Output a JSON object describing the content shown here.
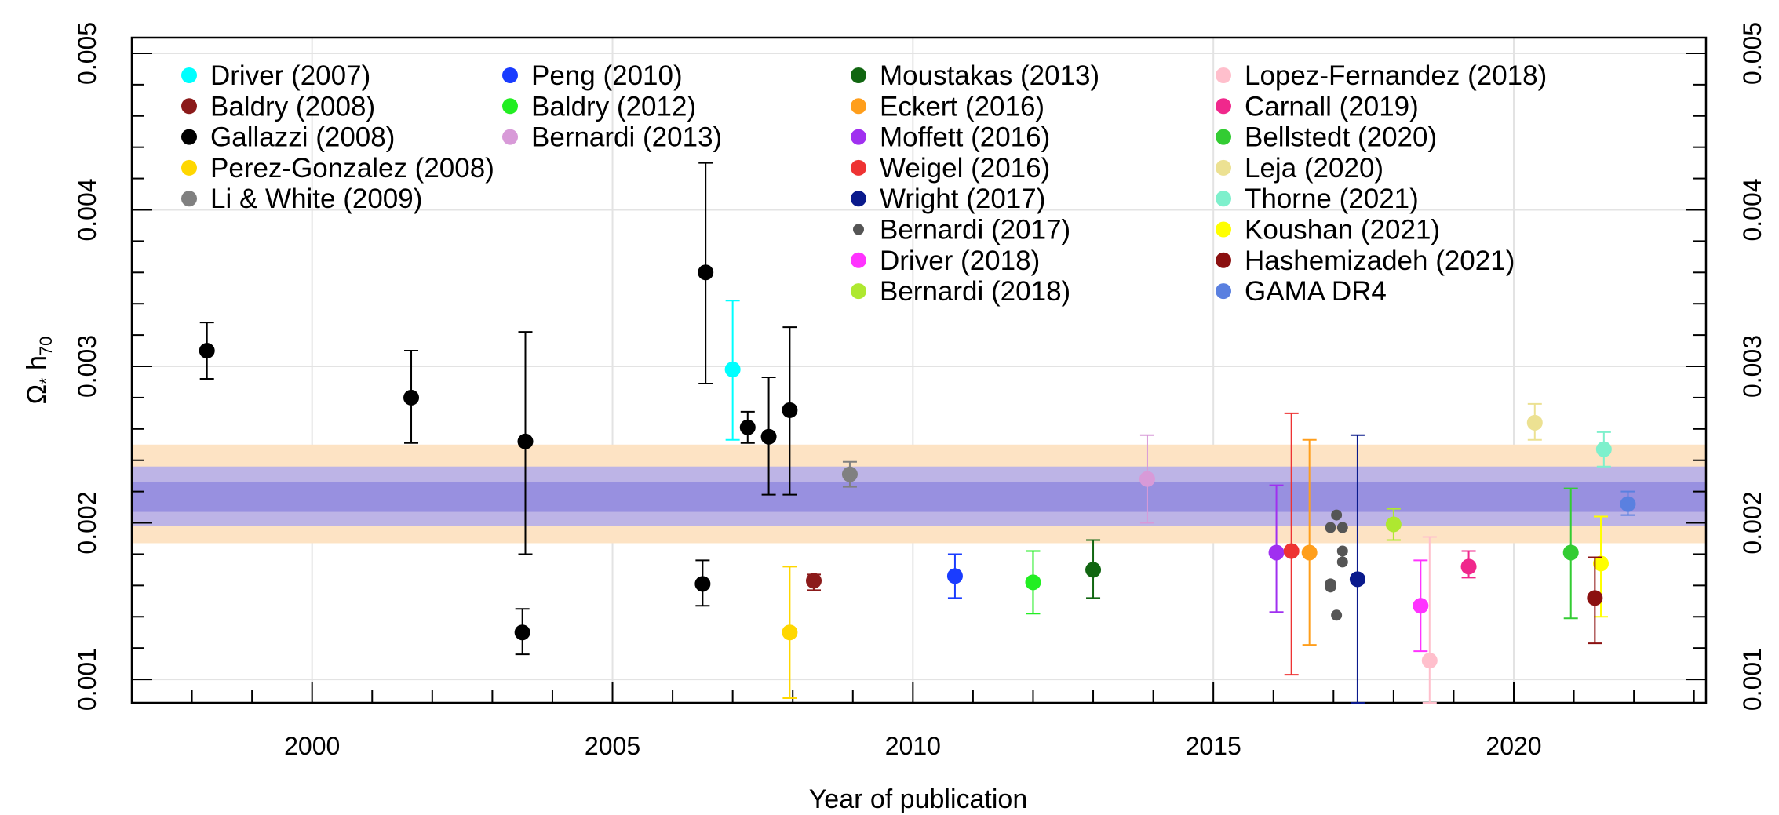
{
  "chart_data": {
    "type": "scatter",
    "title": "",
    "xlabel": "Year of publication",
    "ylabel_main": "Ω",
    "ylabel_sub1": "*",
    "ylabel_mid": " h",
    "ylabel_sub2": "70",
    "xlim": [
      1997,
      2023.2
    ],
    "ylim": [
      0.00085,
      0.0051
    ],
    "xticks": [
      2000,
      2005,
      2010,
      2015,
      2020
    ],
    "xtick_labels": [
      "2000",
      "2005",
      "2010",
      "2015",
      "2020"
    ],
    "yticks": [
      0.001,
      0.002,
      0.003,
      0.004,
      0.005
    ],
    "ytick_labels": [
      "0.001",
      "0.002",
      "0.003",
      "0.004",
      "0.005"
    ],
    "grid": true,
    "bands": [
      {
        "name": "outer-band",
        "y1": 0.00187,
        "y2": 0.0025,
        "color": "#fde3c4"
      },
      {
        "name": "middle-band",
        "y1": 0.00198,
        "y2": 0.00236,
        "color": "#bdb4e6"
      },
      {
        "name": "inner-band",
        "y1": 0.00207,
        "y2": 0.00226,
        "color": "#9890e0"
      }
    ],
    "series": [
      {
        "name": "Driver (2007)",
        "color": "#00ffff",
        "points": [
          {
            "x": 2007.0,
            "y": 0.00298,
            "lo": 0.00253,
            "hi": 0.00342
          }
        ]
      },
      {
        "name": "Baldry (2008)",
        "color": "#8b1a1a",
        "points": [
          {
            "x": 2008.35,
            "y": 0.00163,
            "lo": 0.00157,
            "hi": 0.00167
          }
        ]
      },
      {
        "name": "Gallazzi (2008)",
        "color": "#000000",
        "points": [
          {
            "x": 1998.25,
            "y": 0.0031,
            "lo": 0.00292,
            "hi": 0.00328
          },
          {
            "x": 2001.65,
            "y": 0.0028,
            "lo": 0.00251,
            "hi": 0.0031
          },
          {
            "x": 2003.5,
            "y": 0.0013,
            "lo": 0.00116,
            "hi": 0.00145
          },
          {
            "x": 2003.55,
            "y": 0.00252,
            "lo": 0.0018,
            "hi": 0.00322
          },
          {
            "x": 2006.5,
            "y": 0.00161,
            "lo": 0.00147,
            "hi": 0.00176
          },
          {
            "x": 2006.55,
            "y": 0.0036,
            "lo": 0.00289,
            "hi": 0.0043
          },
          {
            "x": 2007.25,
            "y": 0.00261,
            "lo": 0.00251,
            "hi": 0.00271
          },
          {
            "x": 2007.6,
            "y": 0.00255,
            "lo": 0.00218,
            "hi": 0.00293
          },
          {
            "x": 2007.95,
            "y": 0.00272,
            "lo": 0.00218,
            "hi": 0.00325
          }
        ]
      },
      {
        "name": "Perez-Gonzalez (2008)",
        "color": "#ffd700",
        "points": [
          {
            "x": 2007.95,
            "y": 0.0013,
            "lo": 0.00088,
            "hi": 0.00172
          }
        ]
      },
      {
        "name": "Li & White (2009)",
        "color": "#808080",
        "points": [
          {
            "x": 2008.95,
            "y": 0.00231,
            "lo": 0.00223,
            "hi": 0.00239
          }
        ]
      },
      {
        "name": "Peng (2010)",
        "color": "#1a3cff",
        "points": [
          {
            "x": 2010.7,
            "y": 0.00166,
            "lo": 0.00152,
            "hi": 0.0018
          }
        ]
      },
      {
        "name": "Baldry (2012)",
        "color": "#22ee22",
        "points": [
          {
            "x": 2012.0,
            "y": 0.00162,
            "lo": 0.00142,
            "hi": 0.00182
          }
        ]
      },
      {
        "name": "Bernardi (2013)",
        "color": "#d89ad8",
        "points": [
          {
            "x": 2013.9,
            "y": 0.00228,
            "lo": 0.002,
            "hi": 0.00256
          }
        ]
      },
      {
        "name": "Moustakas (2013)",
        "color": "#116611",
        "points": [
          {
            "x": 2013.0,
            "y": 0.0017,
            "lo": 0.00152,
            "hi": 0.00189
          }
        ]
      },
      {
        "name": "Eckert (2016)",
        "color": "#ff9e1b",
        "points": [
          {
            "x": 2016.6,
            "y": 0.00181,
            "lo": 0.00122,
            "hi": 0.00253
          }
        ]
      },
      {
        "name": "Moffett (2016)",
        "color": "#a030f0",
        "points": [
          {
            "x": 2016.05,
            "y": 0.00181,
            "lo": 0.00143,
            "hi": 0.00224
          }
        ]
      },
      {
        "name": "Weigel (2016)",
        "color": "#ee3333",
        "points": [
          {
            "x": 2016.3,
            "y": 0.00182,
            "lo": 0.00103,
            "hi": 0.0027
          }
        ]
      },
      {
        "name": "Wright (2017)",
        "color": "#0a1a8c",
        "points": [
          {
            "x": 2017.4,
            "y": 0.00164,
            "lo": 0.00085,
            "hi": 0.00256
          }
        ]
      },
      {
        "name": "Bernardi (2017)",
        "color": "#555555",
        "points": [
          {
            "x": 2016.95,
            "y": 0.00197,
            "lo": 0.00197,
            "hi": 0.00197
          },
          {
            "x": 2017.05,
            "y": 0.00205,
            "lo": 0.00205,
            "hi": 0.00205
          },
          {
            "x": 2017.15,
            "y": 0.00197,
            "lo": 0.00197,
            "hi": 0.00197
          },
          {
            "x": 2017.15,
            "y": 0.00182,
            "lo": 0.00182,
            "hi": 0.00182
          },
          {
            "x": 2017.15,
            "y": 0.00175,
            "lo": 0.00175,
            "hi": 0.00175
          },
          {
            "x": 2016.95,
            "y": 0.00161,
            "lo": 0.00161,
            "hi": 0.00161
          },
          {
            "x": 2016.95,
            "y": 0.00159,
            "lo": 0.00159,
            "hi": 0.00159
          },
          {
            "x": 2017.05,
            "y": 0.00141,
            "lo": 0.00141,
            "hi": 0.00141
          }
        ]
      },
      {
        "name": "Driver (2018)",
        "color": "#ff33ff",
        "points": [
          {
            "x": 2018.45,
            "y": 0.00147,
            "lo": 0.00118,
            "hi": 0.00176
          }
        ]
      },
      {
        "name": "Bernardi (2018)",
        "color": "#aee830",
        "points": [
          {
            "x": 2018.0,
            "y": 0.00199,
            "lo": 0.00189,
            "hi": 0.00209
          }
        ]
      },
      {
        "name": "Lopez-Fernandez (2018)",
        "color": "#ffbfcc",
        "points": [
          {
            "x": 2018.6,
            "y": 0.00112,
            "lo": 0.00085,
            "hi": 0.00191
          }
        ]
      },
      {
        "name": "Carnall (2019)",
        "color": "#f0288c",
        "points": [
          {
            "x": 2019.25,
            "y": 0.00172,
            "lo": 0.00165,
            "hi": 0.00182
          }
        ]
      },
      {
        "name": "Bellstedt (2020)",
        "color": "#33cc33",
        "points": [
          {
            "x": 2020.95,
            "y": 0.00181,
            "lo": 0.00139,
            "hi": 0.00222
          }
        ]
      },
      {
        "name": "Leja (2020)",
        "color": "#ece192",
        "points": [
          {
            "x": 2020.35,
            "y": 0.00264,
            "lo": 0.00253,
            "hi": 0.00276
          }
        ]
      },
      {
        "name": "Thorne (2021)",
        "color": "#7ef0cc",
        "points": [
          {
            "x": 2021.5,
            "y": 0.00247,
            "lo": 0.00236,
            "hi": 0.00258
          }
        ]
      },
      {
        "name": "Koushan (2021)",
        "color": "#ffff00",
        "points": [
          {
            "x": 2021.45,
            "y": 0.00174,
            "lo": 0.0014,
            "hi": 0.00204
          }
        ]
      },
      {
        "name": "Hashemizadeh (2021)",
        "color": "#8b1010",
        "points": [
          {
            "x": 2021.35,
            "y": 0.00152,
            "lo": 0.00123,
            "hi": 0.00178
          }
        ]
      },
      {
        "name": "GAMA DR4",
        "color": "#5a80e0",
        "points": [
          {
            "x": 2021.9,
            "y": 0.00212,
            "lo": 0.00205,
            "hi": 0.0022
          }
        ]
      }
    ],
    "legend": [
      [
        {
          "label": "Driver (2007)",
          "color": "#00ffff",
          "small": false
        },
        {
          "label": "Baldry (2008)",
          "color": "#8b1a1a",
          "small": false
        },
        {
          "label": "Gallazzi (2008)",
          "color": "#000000",
          "small": false
        },
        {
          "label": "Perez-Gonzalez (2008)",
          "color": "#ffd700",
          "small": false
        },
        {
          "label": "Li & White (2009)",
          "color": "#808080",
          "small": false
        }
      ],
      [
        {
          "label": "Peng (2010)",
          "color": "#1a3cff",
          "small": false
        },
        {
          "label": "Baldry (2012)",
          "color": "#22ee22",
          "small": false
        },
        {
          "label": "Bernardi (2013)",
          "color": "#d89ad8",
          "small": false
        }
      ],
      [
        {
          "label": "Moustakas (2013)",
          "color": "#116611",
          "small": false
        },
        {
          "label": "Eckert (2016)",
          "color": "#ff9e1b",
          "small": false
        },
        {
          "label": "Moffett (2016)",
          "color": "#a030f0",
          "small": false
        },
        {
          "label": "Weigel (2016)",
          "color": "#ee3333",
          "small": false
        },
        {
          "label": "Wright (2017)",
          "color": "#0a1a8c",
          "small": false
        },
        {
          "label": "Bernardi (2017)",
          "color": "#555555",
          "small": true
        },
        {
          "label": "Driver (2018)",
          "color": "#ff33ff",
          "small": false
        },
        {
          "label": "Bernardi (2018)",
          "color": "#aee830",
          "small": false
        }
      ],
      [
        {
          "label": "Lopez-Fernandez (2018)",
          "color": "#ffbfcc",
          "small": false
        },
        {
          "label": "Carnall (2019)",
          "color": "#f0288c",
          "small": false
        },
        {
          "label": "Bellstedt (2020)",
          "color": "#33cc33",
          "small": false
        },
        {
          "label": "Leja (2020)",
          "color": "#ece192",
          "small": false
        },
        {
          "label": "Thorne (2021)",
          "color": "#7ef0cc",
          "small": false
        },
        {
          "label": "Koushan (2021)",
          "color": "#ffff00",
          "small": false
        },
        {
          "label": "Hashemizadeh (2021)",
          "color": "#8b1010",
          "small": false
        },
        {
          "label": "GAMA DR4",
          "color": "#5a80e0",
          "small": false
        }
      ]
    ]
  }
}
